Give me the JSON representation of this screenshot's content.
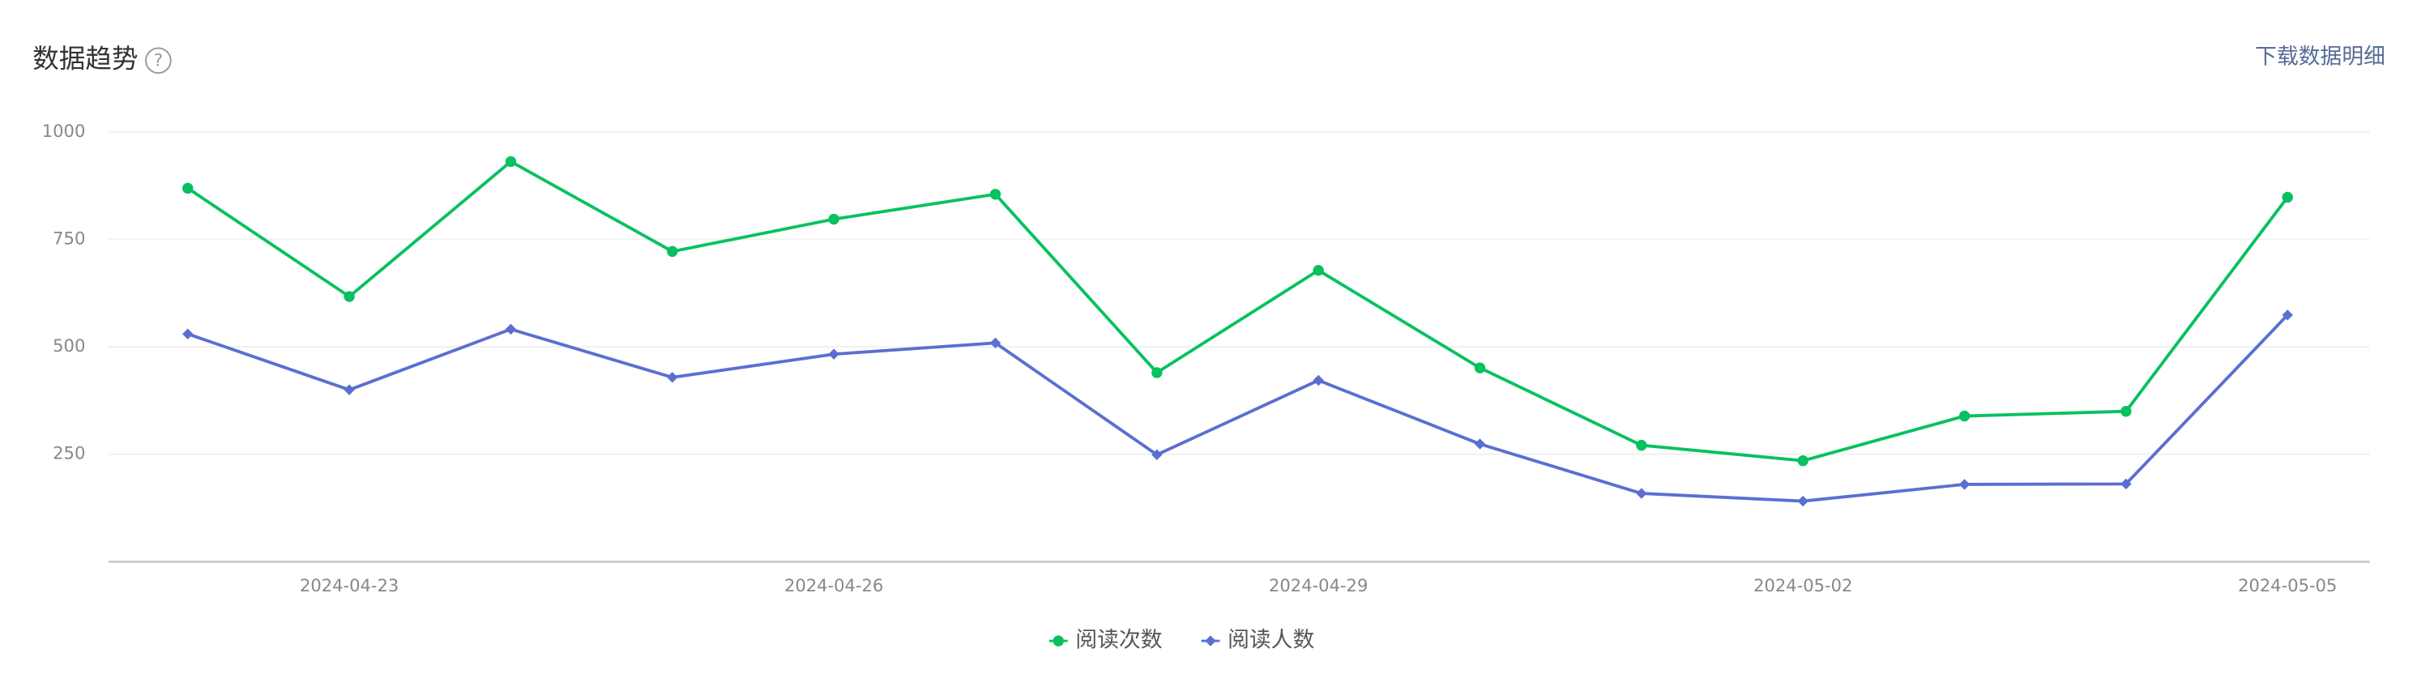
{
  "header": {
    "title": "数据趋势",
    "help": "?",
    "download": "下载数据明细"
  },
  "chart_data": {
    "type": "line",
    "categories": [
      null,
      "2024-04-23",
      null,
      null,
      "2024-04-26",
      null,
      null,
      "2024-04-29",
      null,
      null,
      "2024-05-02",
      null,
      null,
      "2024-05-05"
    ],
    "series": [
      {
        "name": "阅读次数",
        "color": "#07c160",
        "marker": "circle",
        "values": [
          869,
          617,
          931,
          722,
          797,
          855,
          440,
          678,
          451,
          271,
          235,
          339,
          350,
          848
        ]
      },
      {
        "name": "阅读人数",
        "color": "#5b6fd0",
        "marker": "diamond",
        "values": [
          530,
          400,
          541,
          429,
          483,
          509,
          249,
          422,
          274,
          159,
          141,
          180,
          181,
          574
        ]
      }
    ],
    "ylim": [
      0,
      1000
    ],
    "yticks": [
      250,
      500,
      750,
      1000
    ],
    "grid": true,
    "legend": "bottom"
  }
}
